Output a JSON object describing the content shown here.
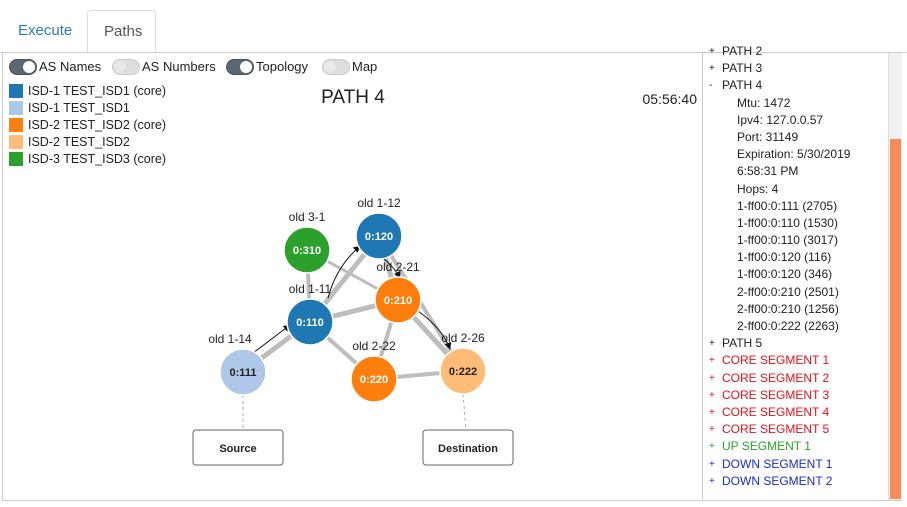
{
  "tabs": [
    {
      "label": "Execute"
    },
    {
      "label": "Paths"
    }
  ],
  "toggles": [
    {
      "label": "AS Names",
      "on": true
    },
    {
      "label": "AS Numbers",
      "on": false
    },
    {
      "label": "Topology",
      "on": true
    },
    {
      "label": "Map",
      "on": false
    }
  ],
  "legend": [
    {
      "label": "ISD-1 TEST_ISD1 (core)",
      "color": "#1f77b4"
    },
    {
      "label": "ISD-1 TEST_ISD1",
      "color": "#aec7e8"
    },
    {
      "label": "ISD-2 TEST_ISD2 (core)",
      "color": "#ff7f0e"
    },
    {
      "label": "ISD-2 TEST_ISD2",
      "color": "#ffbb78"
    },
    {
      "label": "ISD-3 TEST_ISD3 (core)",
      "color": "#2ca02c"
    }
  ],
  "graph": {
    "title": "PATH 4",
    "clock": "05:56:40",
    "nodes": [
      {
        "id": "0:310",
        "name": "old 3-1",
        "color": "#2ca02c"
      },
      {
        "id": "0:120",
        "name": "old 1-12",
        "color": "#1f77b4"
      },
      {
        "id": "0:210",
        "name": "old 2-21",
        "color": "#ff7f0e"
      },
      {
        "id": "0:110",
        "name": "old 1-11",
        "color": "#1f77b4"
      },
      {
        "id": "0:111",
        "name": "old 1-14",
        "color": "#aec7e8"
      },
      {
        "id": "0:220",
        "name": "old 2-22",
        "color": "#ff7f0e"
      },
      {
        "id": "0:222",
        "name": "old 2-26",
        "color": "#ffbb78"
      }
    ],
    "source_label": "Source",
    "destination_label": "Destination"
  },
  "tree": {
    "rows": [
      {
        "sign": "+",
        "text": "PATH 2",
        "color": "#222",
        "detail": false
      },
      {
        "sign": "+",
        "text": "PATH 3",
        "color": "#222",
        "detail": false
      },
      {
        "sign": "-",
        "text": "PATH 4",
        "color": "#222",
        "detail": false
      },
      {
        "sign": "",
        "text": "Mtu: 1472",
        "color": "#222",
        "detail": true
      },
      {
        "sign": "",
        "text": "Ipv4: 127.0.0.57",
        "color": "#222",
        "detail": true
      },
      {
        "sign": "",
        "text": "Port: 31149",
        "color": "#222",
        "detail": true
      },
      {
        "sign": "",
        "text": "Expiration: 5/30/2019",
        "color": "#222",
        "detail": true
      },
      {
        "sign": "",
        "text": "6:58:31 PM",
        "color": "#222",
        "detail": true
      },
      {
        "sign": "",
        "text": "Hops: 4",
        "color": "#222",
        "detail": true
      },
      {
        "sign": "",
        "text": "1-ff00:0:111 (2705)",
        "color": "#222",
        "detail": true
      },
      {
        "sign": "",
        "text": "1-ff00:0:110 (1530)",
        "color": "#222",
        "detail": true
      },
      {
        "sign": "",
        "text": "1-ff00:0:110 (3017)",
        "color": "#222",
        "detail": true
      },
      {
        "sign": "",
        "text": "1-ff00:0:120 (116)",
        "color": "#222",
        "detail": true
      },
      {
        "sign": "",
        "text": "1-ff00:0:120 (346)",
        "color": "#222",
        "detail": true
      },
      {
        "sign": "",
        "text": "2-ff00:0:210 (2501)",
        "color": "#222",
        "detail": true
      },
      {
        "sign": "",
        "text": "2-ff00:0:210 (1256)",
        "color": "#222",
        "detail": true
      },
      {
        "sign": "",
        "text": "2-ff00:0:222 (2263)",
        "color": "#222",
        "detail": true
      },
      {
        "sign": "+",
        "text": "PATH 5",
        "color": "#222",
        "detail": false
      },
      {
        "sign": "+",
        "text": "CORE SEGMENT 1",
        "color": "#e8101a",
        "detail": false
      },
      {
        "sign": "+",
        "text": "CORE SEGMENT 2",
        "color": "#e8101a",
        "detail": false
      },
      {
        "sign": "+",
        "text": "CORE SEGMENT 3",
        "color": "#e8101a",
        "detail": false
      },
      {
        "sign": "+",
        "text": "CORE SEGMENT 4",
        "color": "#e8101a",
        "detail": false
      },
      {
        "sign": "+",
        "text": "CORE SEGMENT 5",
        "color": "#e8101a",
        "detail": false
      },
      {
        "sign": "+",
        "text": "UP SEGMENT 1",
        "color": "#2ca02c",
        "detail": false
      },
      {
        "sign": "+",
        "text": "DOWN SEGMENT 1",
        "color": "#1d2bd6",
        "detail": false
      },
      {
        "sign": "+",
        "text": "DOWN SEGMENT 2",
        "color": "#1d2bd6",
        "detail": false
      }
    ]
  }
}
